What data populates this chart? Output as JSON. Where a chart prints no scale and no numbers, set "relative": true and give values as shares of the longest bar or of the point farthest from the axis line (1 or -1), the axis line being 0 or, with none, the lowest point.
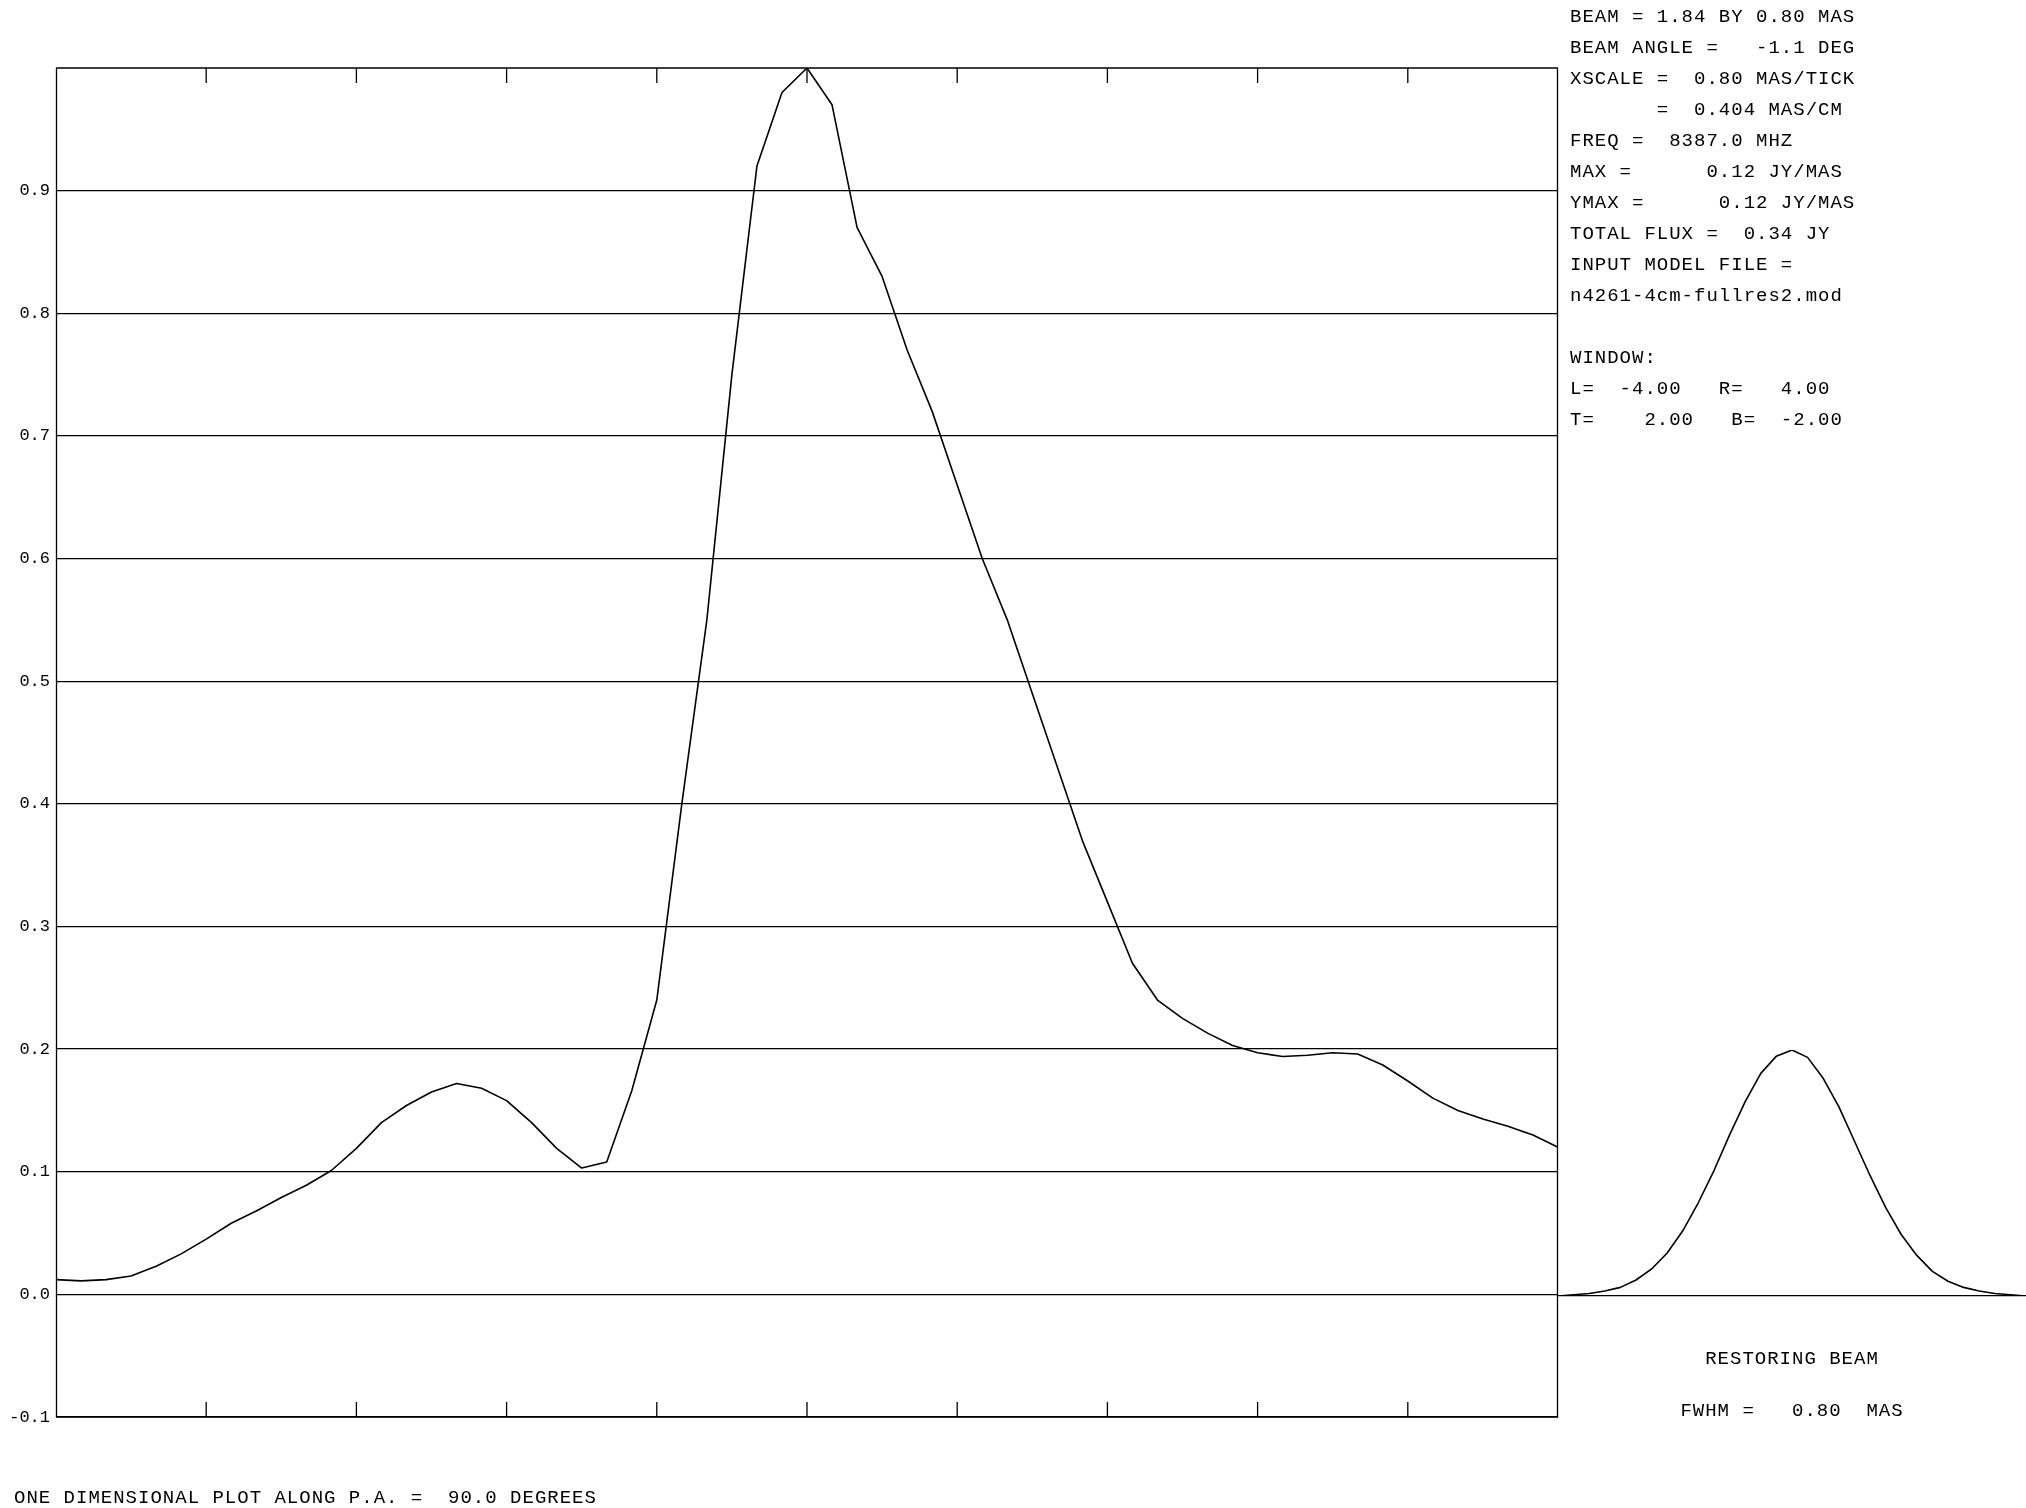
{
  "chart_data": [
    {
      "type": "line",
      "categories": [
        null,
        null,
        null,
        null,
        null,
        null,
        null,
        null,
        null,
        null,
        null,
        null,
        null,
        null,
        null,
        null,
        null,
        null,
        null,
        null,
        null,
        null,
        null,
        null,
        null,
        null,
        null,
        null,
        null,
        null,
        null,
        null,
        null,
        null,
        null,
        null,
        null,
        null,
        null,
        null,
        null,
        null,
        null,
        null,
        null,
        null,
        null,
        null,
        null,
        null,
        null,
        null,
        null,
        null,
        null,
        null,
        null,
        null,
        null,
        null,
        null
      ],
      "series": [
        {
          "color": "#000000",
          "values": [
            0.012,
            0.011,
            0.012,
            0.015,
            0.023,
            0.033,
            0.045,
            0.058,
            0.068,
            0.079,
            0.089,
            0.101,
            0.119,
            0.14,
            0.154,
            0.165,
            0.172,
            0.168,
            0.158,
            0.14,
            0.119,
            0.103,
            0.108,
            0.166,
            0.24,
            0.4,
            0.55,
            0.75,
            0.92,
            0.98,
            1.0,
            0.97,
            0.87,
            0.83,
            0.77,
            0.72,
            0.66,
            0.6,
            0.55,
            0.49,
            0.43,
            0.37,
            0.32,
            0.27,
            0.24,
            0.225,
            0.213,
            0.203,
            0.197,
            0.194,
            0.195,
            0.197,
            0.196,
            0.187,
            0.174,
            0.16,
            0.15,
            0.143,
            0.137,
            0.13,
            0.12
          ]
        }
      ],
      "ylim": [
        -0.1,
        1.0
      ],
      "yticks": [
        -0.1,
        {
          "value": 0,
          "label": "0.0"
        },
        0.1,
        0.2,
        0.3,
        0.4,
        0.5,
        0.6,
        0.7,
        0.8,
        0.9
      ],
      "grid": "y",
      "tick_labels": "y",
      "annotations": [
        "BEAM = 1.84 BY 0.80 MAS",
        "BEAM ANGLE =   -1.1 DEG",
        "XSCALE =  0.80 MAS/TICK",
        "       =  0.404 MAS/CM",
        "FREQ =  8387.0 MHZ",
        "MAX =      0.12 JY/MAS",
        "YMAX =      0.12 JY/MAS",
        "TOTAL FLUX =  0.34 JY",
        "INPUT MODEL FILE =",
        "n4261-4cm-fullres2.mod",
        "WINDOW:",
        "L=  -4.00   R=   4.00",
        "T=    2.00   B=  -2.00",
        "ONE DIMENSIONAL PLOT ALONG P.A. =  90.0 DEGREES"
      ]
    },
    {
      "type": "line",
      "title": "RESTORING BEAM",
      "categories": [
        null,
        null,
        null,
        null,
        null,
        null,
        null,
        null,
        null,
        null,
        null,
        null,
        null,
        null,
        null,
        null,
        null,
        null,
        null,
        null,
        null,
        null,
        null,
        null,
        null,
        null,
        null,
        null,
        null,
        null,
        null
      ],
      "series": [
        {
          "color": "#000000",
          "values": [
            0.0,
            0.005,
            0.01,
            0.02,
            0.035,
            0.065,
            0.11,
            0.175,
            0.265,
            0.38,
            0.51,
            0.655,
            0.79,
            0.905,
            0.975,
            1.0,
            0.97,
            0.885,
            0.77,
            0.63,
            0.49,
            0.36,
            0.25,
            0.165,
            0.1,
            0.06,
            0.035,
            0.02,
            0.01,
            0.005,
            0.0
          ]
        }
      ],
      "relative": true,
      "annotations": [
        "FWHM =   0.80  MAS"
      ]
    }
  ]
}
